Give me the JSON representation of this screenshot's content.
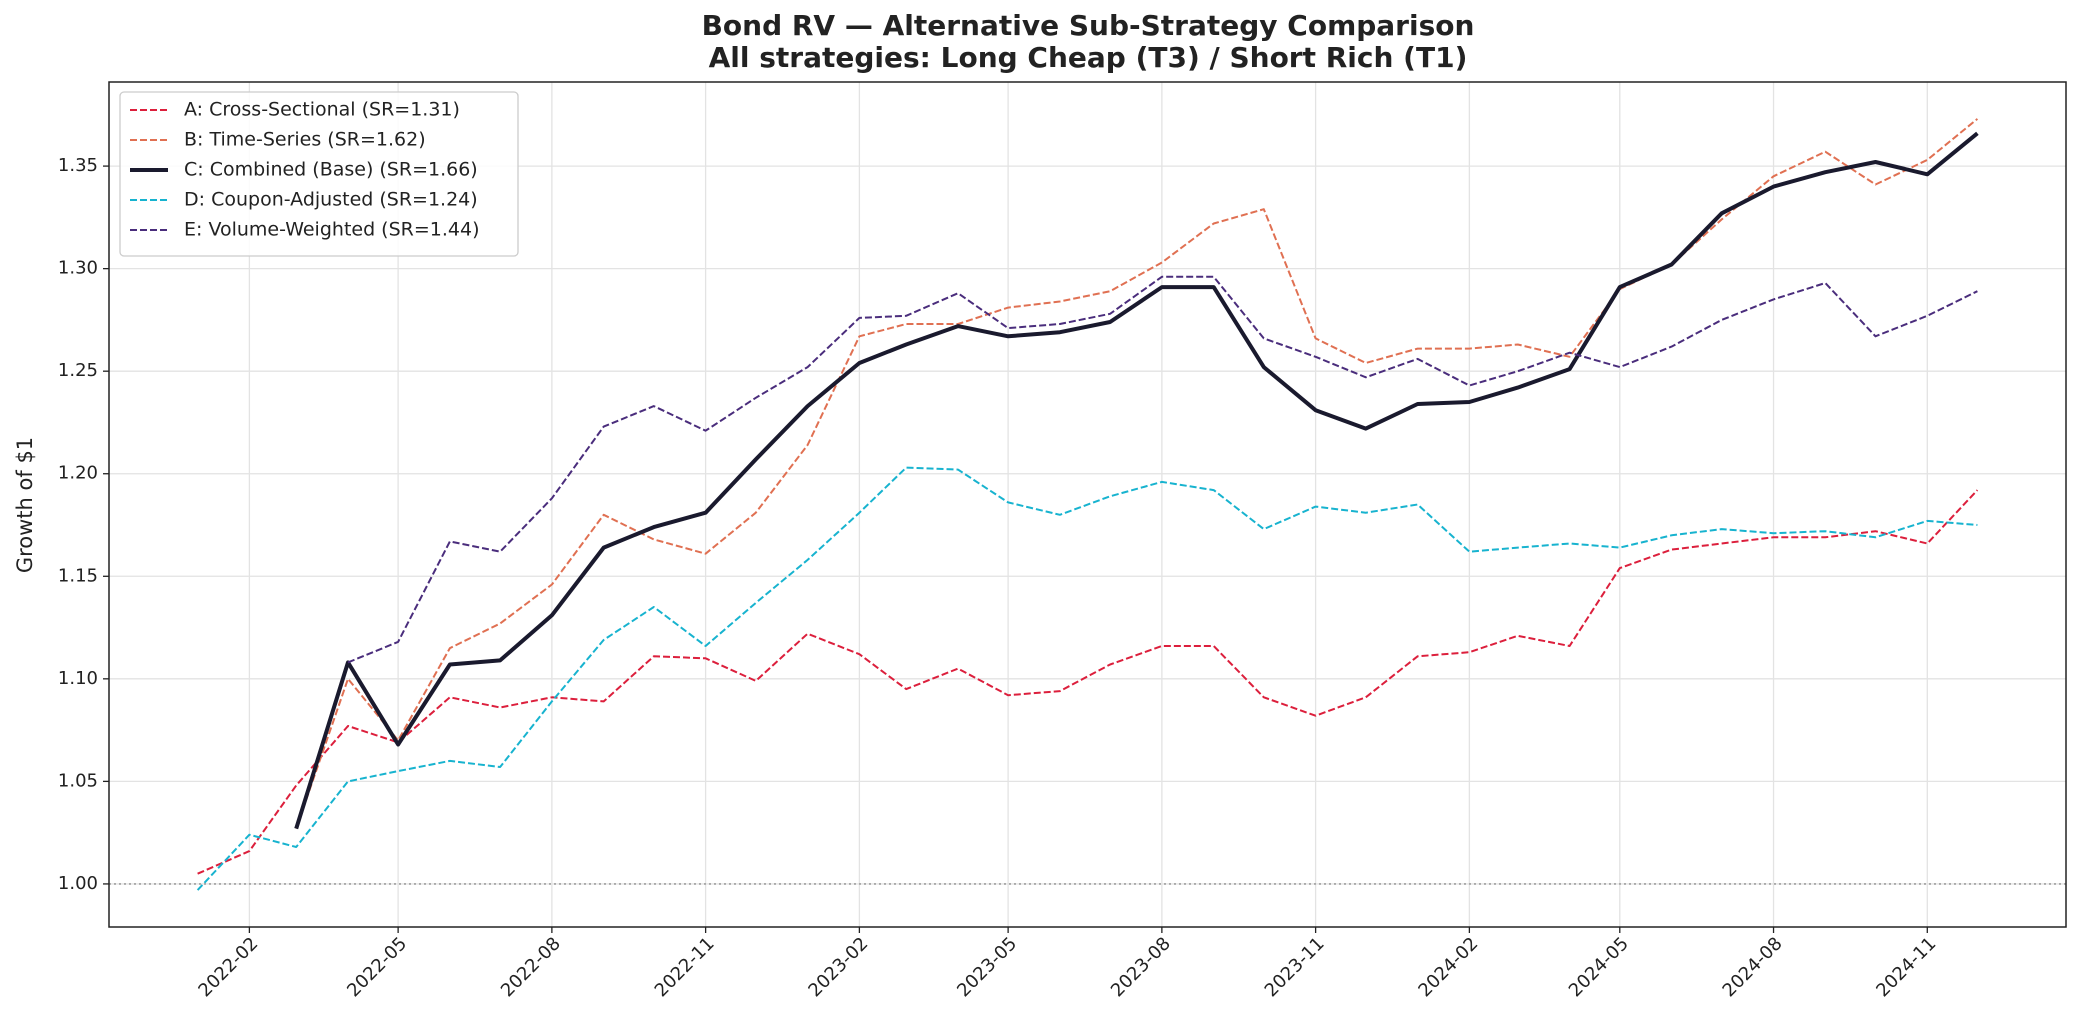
{
  "chart_data": {
    "type": "line",
    "title": "Bond RV — Alternative Sub-Strategy Comparison",
    "subtitle": "All strategies: Long Cheap (T3) / Short Rich (T1)",
    "ylabel": "Growth of $1",
    "x": [
      "2022-01",
      "2022-02",
      "2022-03",
      "2022-04",
      "2022-05",
      "2022-06",
      "2022-07",
      "2022-08",
      "2022-09",
      "2022-10",
      "2022-11",
      "2022-12",
      "2023-01",
      "2023-02",
      "2023-03",
      "2023-04",
      "2023-05",
      "2023-06",
      "2023-07",
      "2023-08",
      "2023-09",
      "2023-10",
      "2023-11",
      "2023-12",
      "2024-01",
      "2024-02",
      "2024-03",
      "2024-04",
      "2024-05",
      "2024-06",
      "2024-07",
      "2024-08",
      "2024-09",
      "2024-10",
      "2024-11",
      "2024-12"
    ],
    "series": [
      {
        "name": "A: Cross-Sectional (SR=1.31)",
        "color": "#dc1f3c",
        "linestyle": "dashed",
        "values": [
          1.005,
          1.016,
          1.048,
          1.077,
          1.069,
          1.091,
          1.086,
          1.091,
          1.089,
          1.111,
          1.11,
          1.099,
          1.122,
          1.112,
          1.095,
          1.105,
          1.092,
          1.094,
          1.107,
          1.116,
          1.116,
          1.091,
          1.082,
          1.091,
          1.111,
          1.113,
          1.121,
          1.116,
          1.154,
          1.163,
          1.166,
          1.169,
          1.169,
          1.172,
          1.166,
          1.192
        ]
      },
      {
        "name": "B: Time-Series (SR=1.62)",
        "color": "#e07052",
        "linestyle": "dashed",
        "values": [
          null,
          null,
          1.027,
          1.1,
          1.07,
          1.115,
          1.127,
          1.146,
          1.18,
          1.168,
          1.161,
          1.181,
          1.214,
          1.267,
          1.273,
          1.273,
          1.281,
          1.284,
          1.289,
          1.303,
          1.322,
          1.329,
          1.266,
          1.254,
          1.261,
          1.261,
          1.263,
          1.257,
          1.29,
          1.302,
          1.324,
          1.345,
          1.357,
          1.341,
          1.353,
          1.373
        ]
      },
      {
        "name": "C: Combined (Base) (SR=1.66)",
        "color": "#1a1a2e",
        "linestyle": "solid",
        "values": [
          null,
          null,
          1.027,
          1.108,
          1.068,
          1.107,
          1.109,
          1.131,
          1.164,
          1.174,
          1.181,
          1.207,
          1.233,
          1.254,
          1.263,
          1.272,
          1.267,
          1.269,
          1.274,
          1.291,
          1.291,
          1.252,
          1.231,
          1.222,
          1.234,
          1.235,
          1.242,
          1.251,
          1.291,
          1.302,
          1.327,
          1.34,
          1.347,
          1.352,
          1.346,
          1.366
        ]
      },
      {
        "name": "D: Coupon-Adjusted (SR=1.24)",
        "color": "#17b3cf",
        "linestyle": "dashed",
        "values": [
          0.997,
          1.024,
          1.018,
          1.05,
          1.055,
          1.06,
          1.057,
          1.089,
          1.119,
          1.135,
          1.116,
          1.137,
          1.158,
          1.181,
          1.203,
          1.202,
          1.186,
          1.18,
          1.189,
          1.196,
          1.192,
          1.173,
          1.184,
          1.181,
          1.185,
          1.162,
          1.164,
          1.166,
          1.164,
          1.17,
          1.173,
          1.171,
          1.172,
          1.169,
          1.177,
          1.175
        ]
      },
      {
        "name": "E: Volume-Weighted (SR=1.44)",
        "color": "#4a2d7c",
        "linestyle": "dashed",
        "values": [
          null,
          null,
          null,
          1.108,
          1.118,
          1.167,
          1.162,
          1.188,
          1.223,
          1.233,
          1.221,
          1.237,
          1.252,
          1.276,
          1.277,
          1.288,
          1.271,
          1.273,
          1.278,
          1.296,
          1.296,
          1.266,
          1.257,
          1.247,
          1.256,
          1.243,
          1.25,
          1.259,
          1.252,
          1.262,
          1.275,
          1.285,
          1.293,
          1.267,
          1.277,
          1.289
        ]
      }
    ],
    "xlim": [
      "2021-11-09",
      "2025-01-23"
    ],
    "xticks": [
      "2022-02",
      "2022-05",
      "2022-08",
      "2022-11",
      "2023-02",
      "2023-05",
      "2023-08",
      "2023-11",
      "2024-02",
      "2024-05",
      "2024-08",
      "2024-11"
    ],
    "ylim": [
      0.979,
      1.391
    ],
    "yticks": [
      {
        "value": 1.0,
        "label": "1.00"
      },
      {
        "value": 1.05,
        "label": "1.05"
      },
      {
        "value": 1.1,
        "label": "1.10"
      },
      {
        "value": 1.15,
        "label": "1.15"
      },
      {
        "value": 1.2,
        "label": "1.20"
      },
      {
        "value": 1.25,
        "label": "1.25"
      },
      {
        "value": 1.3,
        "label": "1.30"
      },
      {
        "value": 1.35,
        "label": "1.35"
      }
    ],
    "reference_line": 1,
    "grid": true,
    "legend": "upper-left"
  }
}
